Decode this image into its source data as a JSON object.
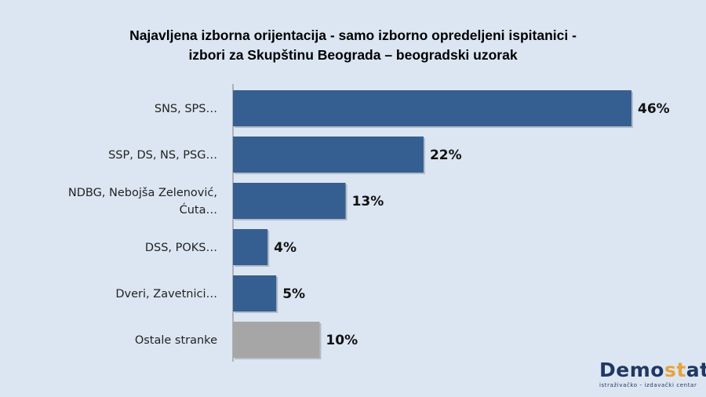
{
  "chart_data": {
    "type": "bar",
    "orientation": "horizontal",
    "title_line1": "Najavljena izborna orijentacija  - samo izborno opredeljeni ispitanici -",
    "title_line2": "izbori za Skupštinu Beograda – beogradski uzorak",
    "categories": [
      [
        "SNS, SPS…"
      ],
      [
        "SSP, DS, NS, PSG…"
      ],
      [
        "NDBG, Nebojša Zelenović,",
        "Ćuta…"
      ],
      [
        "DSS, POKS…"
      ],
      [
        "Dveri, Zavetnici…"
      ],
      [
        "Ostale stranke"
      ]
    ],
    "values": [
      46,
      22,
      13,
      4,
      5,
      10
    ],
    "value_labels": [
      "46%",
      "22%",
      "13%",
      "4%",
      "5%",
      "10%"
    ],
    "xlim": [
      0,
      46
    ],
    "colors": [
      "#365f91",
      "#365f91",
      "#365f91",
      "#365f91",
      "#365f91",
      "#a6a6a6"
    ],
    "grid": false,
    "legend": "none"
  },
  "logo": {
    "part1": "Demo",
    "part2": "st",
    "part3": "at",
    "tagline": "istraživačko - izdavački  centar"
  }
}
